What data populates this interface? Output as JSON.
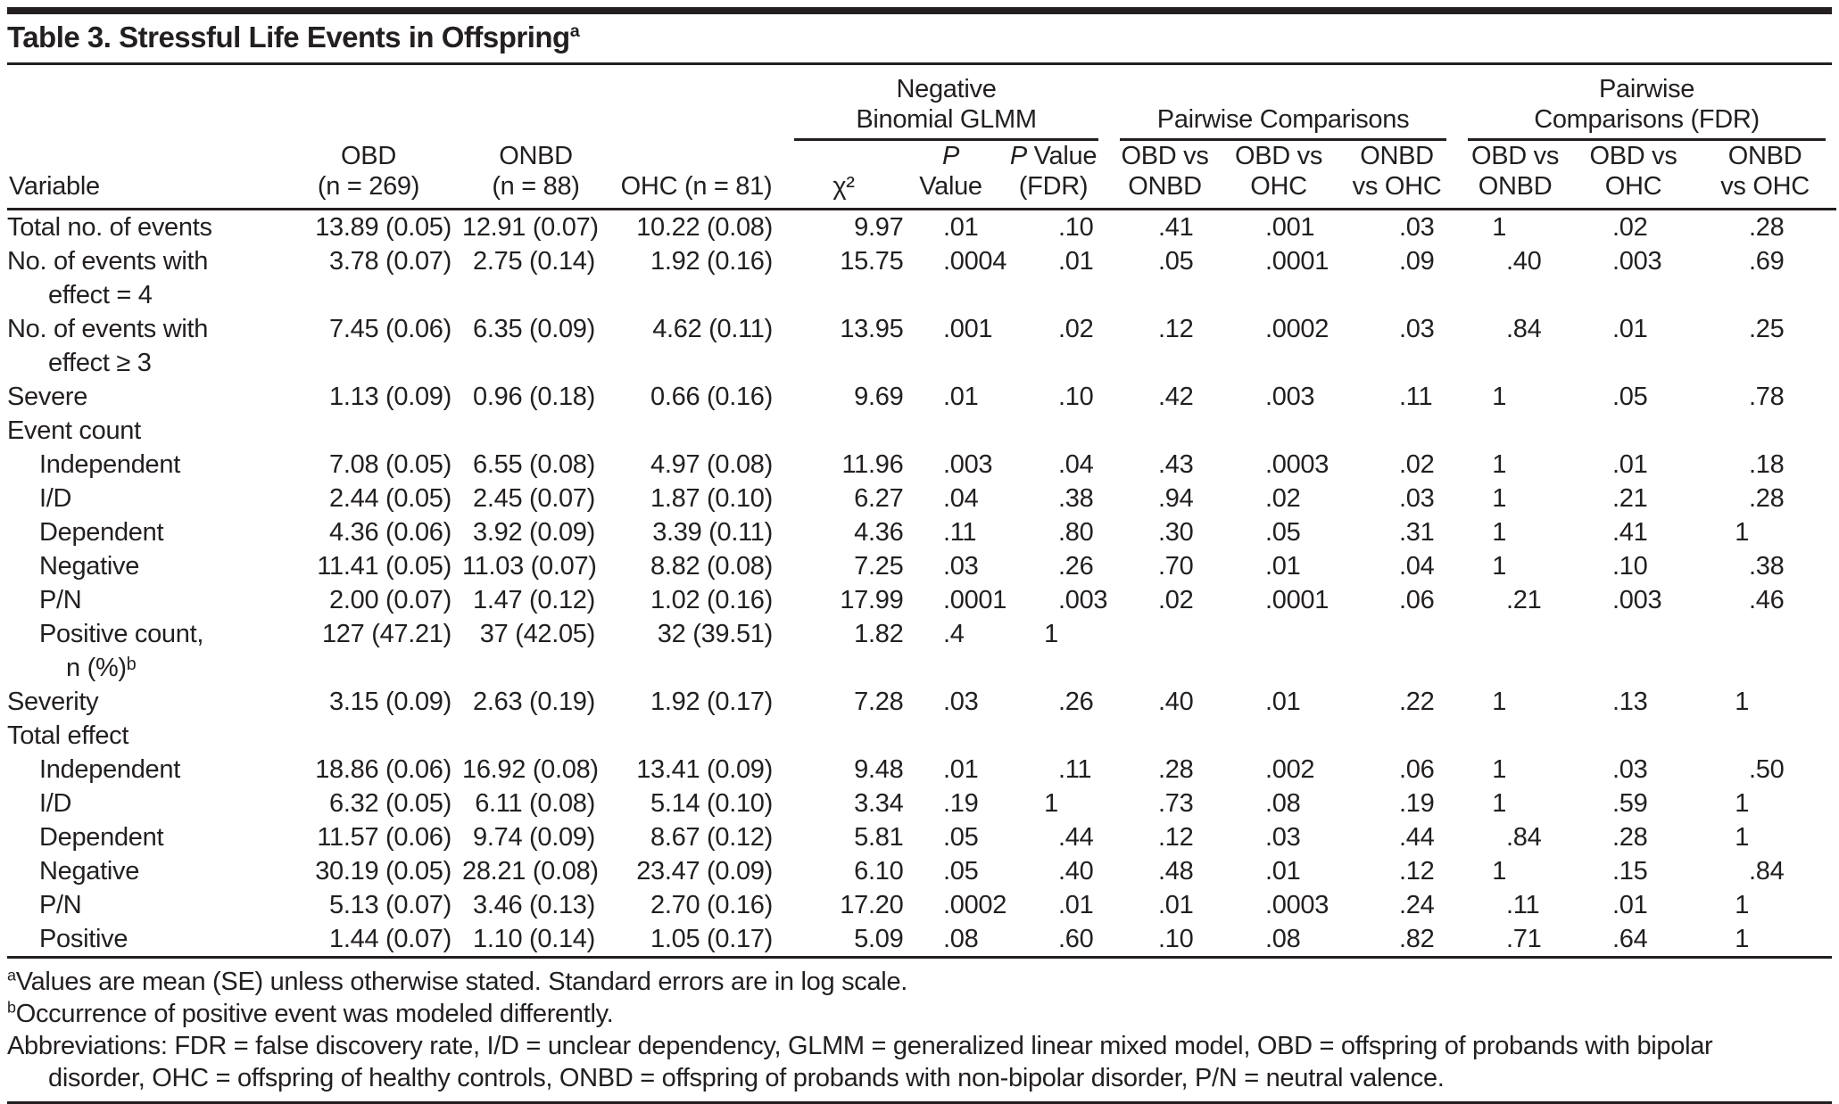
{
  "title": {
    "text": "Table 3. Stressful Life Events in Offspring",
    "superscript": "a"
  },
  "header": {
    "groups": [
      {
        "label": "Negative\nBinomial GLMM",
        "span": 3
      },
      {
        "label": "Pairwise Comparisons",
        "span": 3
      },
      {
        "label": "Pairwise\nComparisons (FDR)",
        "span": 3
      }
    ],
    "columns": [
      "Variable",
      "OBD\n(n = 269)",
      "ONBD\n(n = 88)",
      "OHC (n = 81)",
      "χ²",
      "P\nValue",
      "P Value\n(FDR)",
      "OBD vs\nONBD",
      "OBD vs\nOHC",
      "ONBD\nvs OHC",
      "OBD vs\nONBD",
      "OBD vs\nOHC",
      "ONBD\nvs OHC"
    ],
    "column_keys": [
      "obd",
      "onbd",
      "ohc",
      "chi2",
      "p_value",
      "p_value_fdr",
      "obd_vs_onbd",
      "obd_vs_ohc",
      "onbd_vs_ohc",
      "fdr_obd_vs_onbd",
      "fdr_obd_vs_ohc",
      "fdr_onbd_vs_ohc"
    ]
  },
  "rows": [
    {
      "label": "Total no. of events",
      "indent": 0,
      "values": {
        "obd": "13.89 (0.05)",
        "onbd": "12.91 (0.07)",
        "ohc": "10.22 (0.08)",
        "chi2": "9.97",
        "p_value": ".01",
        "p_value_fdr": ".10",
        "obd_vs_onbd": ".41",
        "obd_vs_ohc": ".001",
        "onbd_vs_ohc": ".03",
        "fdr_obd_vs_onbd": "1",
        "fdr_obd_vs_ohc": ".02",
        "fdr_onbd_vs_ohc": ".28"
      }
    },
    {
      "label": "No. of events with\neffect = 4",
      "indent": 0,
      "values": {
        "obd": "3.78 (0.07)",
        "onbd": "2.75 (0.14)",
        "ohc": "1.92 (0.16)",
        "chi2": "15.75",
        "p_value": ".0004",
        "p_value_fdr": ".01",
        "obd_vs_onbd": ".05",
        "obd_vs_ohc": ".0001",
        "onbd_vs_ohc": ".09",
        "fdr_obd_vs_onbd": ".40",
        "fdr_obd_vs_ohc": ".003",
        "fdr_onbd_vs_ohc": ".69"
      }
    },
    {
      "label": "No. of events with\neffect ≥ 3",
      "indent": 0,
      "values": {
        "obd": "7.45 (0.06)",
        "onbd": "6.35 (0.09)",
        "ohc": "4.62 (0.11)",
        "chi2": "13.95",
        "p_value": ".001",
        "p_value_fdr": ".02",
        "obd_vs_onbd": ".12",
        "obd_vs_ohc": ".0002",
        "onbd_vs_ohc": ".03",
        "fdr_obd_vs_onbd": ".84",
        "fdr_obd_vs_ohc": ".01",
        "fdr_onbd_vs_ohc": ".25"
      }
    },
    {
      "label": "Severe",
      "indent": 0,
      "values": {
        "obd": "1.13 (0.09)",
        "onbd": "0.96 (0.18)",
        "ohc": "0.66 (0.16)",
        "chi2": "9.69",
        "p_value": ".01",
        "p_value_fdr": ".10",
        "obd_vs_onbd": ".42",
        "obd_vs_ohc": ".003",
        "onbd_vs_ohc": ".11",
        "fdr_obd_vs_onbd": "1",
        "fdr_obd_vs_ohc": ".05",
        "fdr_onbd_vs_ohc": ".78"
      }
    },
    {
      "label": "Event count",
      "indent": 0,
      "section": true,
      "values": {}
    },
    {
      "label": "Independent",
      "indent": 1,
      "values": {
        "obd": "7.08 (0.05)",
        "onbd": "6.55 (0.08)",
        "ohc": "4.97 (0.08)",
        "chi2": "11.96",
        "p_value": ".003",
        "p_value_fdr": ".04",
        "obd_vs_onbd": ".43",
        "obd_vs_ohc": ".0003",
        "onbd_vs_ohc": ".02",
        "fdr_obd_vs_onbd": "1",
        "fdr_obd_vs_ohc": ".01",
        "fdr_onbd_vs_ohc": ".18"
      }
    },
    {
      "label": "I/D",
      "indent": 1,
      "values": {
        "obd": "2.44 (0.05)",
        "onbd": "2.45 (0.07)",
        "ohc": "1.87 (0.10)",
        "chi2": "6.27",
        "p_value": ".04",
        "p_value_fdr": ".38",
        "obd_vs_onbd": ".94",
        "obd_vs_ohc": ".02",
        "onbd_vs_ohc": ".03",
        "fdr_obd_vs_onbd": "1",
        "fdr_obd_vs_ohc": ".21",
        "fdr_onbd_vs_ohc": ".28"
      }
    },
    {
      "label": "Dependent",
      "indent": 1,
      "values": {
        "obd": "4.36 (0.06)",
        "onbd": "3.92 (0.09)",
        "ohc": "3.39 (0.11)",
        "chi2": "4.36",
        "p_value": ".11",
        "p_value_fdr": ".80",
        "obd_vs_onbd": ".30",
        "obd_vs_ohc": ".05",
        "onbd_vs_ohc": ".31",
        "fdr_obd_vs_onbd": "1",
        "fdr_obd_vs_ohc": ".41",
        "fdr_onbd_vs_ohc": "1"
      }
    },
    {
      "label": "Negative",
      "indent": 1,
      "values": {
        "obd": "11.41 (0.05)",
        "onbd": "11.03 (0.07)",
        "ohc": "8.82 (0.08)",
        "chi2": "7.25",
        "p_value": ".03",
        "p_value_fdr": ".26",
        "obd_vs_onbd": ".70",
        "obd_vs_ohc": ".01",
        "onbd_vs_ohc": ".04",
        "fdr_obd_vs_onbd": "1",
        "fdr_obd_vs_ohc": ".10",
        "fdr_onbd_vs_ohc": ".38"
      }
    },
    {
      "label": "P/N",
      "indent": 1,
      "values": {
        "obd": "2.00 (0.07)",
        "onbd": "1.47 (0.12)",
        "ohc": "1.02 (0.16)",
        "chi2": "17.99",
        "p_value": ".0001",
        "p_value_fdr": ".003",
        "obd_vs_onbd": ".02",
        "obd_vs_ohc": ".0001",
        "onbd_vs_ohc": ".06",
        "fdr_obd_vs_onbd": ".21",
        "fdr_obd_vs_ohc": ".003",
        "fdr_onbd_vs_ohc": ".46"
      }
    },
    {
      "label": "Positive count,\nn (%)ᵇ",
      "indent": 1,
      "values": {
        "obd": "127 (47.21)",
        "onbd": "37 (42.05)",
        "ohc": "32 (39.51)",
        "chi2": "1.82",
        "p_value": ".4",
        "p_value_fdr": "1",
        "obd_vs_onbd": "",
        "obd_vs_ohc": "",
        "onbd_vs_ohc": "",
        "fdr_obd_vs_onbd": "",
        "fdr_obd_vs_ohc": "",
        "fdr_onbd_vs_ohc": ""
      }
    },
    {
      "label": "Severity",
      "indent": 0,
      "values": {
        "obd": "3.15 (0.09)",
        "onbd": "2.63 (0.19)",
        "ohc": "1.92 (0.17)",
        "chi2": "7.28",
        "p_value": ".03",
        "p_value_fdr": ".26",
        "obd_vs_onbd": ".40",
        "obd_vs_ohc": ".01",
        "onbd_vs_ohc": ".22",
        "fdr_obd_vs_onbd": "1",
        "fdr_obd_vs_ohc": ".13",
        "fdr_onbd_vs_ohc": "1"
      }
    },
    {
      "label": "Total effect",
      "indent": 0,
      "section": true,
      "values": {}
    },
    {
      "label": "Independent",
      "indent": 1,
      "values": {
        "obd": "18.86 (0.06)",
        "onbd": "16.92 (0.08)",
        "ohc": "13.41 (0.09)",
        "chi2": "9.48",
        "p_value": ".01",
        "p_value_fdr": ".11",
        "obd_vs_onbd": ".28",
        "obd_vs_ohc": ".002",
        "onbd_vs_ohc": ".06",
        "fdr_obd_vs_onbd": "1",
        "fdr_obd_vs_ohc": ".03",
        "fdr_onbd_vs_ohc": ".50"
      }
    },
    {
      "label": "I/D",
      "indent": 1,
      "values": {
        "obd": "6.32 (0.05)",
        "onbd": "6.11 (0.08)",
        "ohc": "5.14 (0.10)",
        "chi2": "3.34",
        "p_value": ".19",
        "p_value_fdr": "1",
        "obd_vs_onbd": ".73",
        "obd_vs_ohc": ".08",
        "onbd_vs_ohc": ".19",
        "fdr_obd_vs_onbd": "1",
        "fdr_obd_vs_ohc": ".59",
        "fdr_onbd_vs_ohc": "1"
      }
    },
    {
      "label": "Dependent",
      "indent": 1,
      "values": {
        "obd": "11.57 (0.06)",
        "onbd": "9.74 (0.09)",
        "ohc": "8.67 (0.12)",
        "chi2": "5.81",
        "p_value": ".05",
        "p_value_fdr": ".44",
        "obd_vs_onbd": ".12",
        "obd_vs_ohc": ".03",
        "onbd_vs_ohc": ".44",
        "fdr_obd_vs_onbd": ".84",
        "fdr_obd_vs_ohc": ".28",
        "fdr_onbd_vs_ohc": "1"
      }
    },
    {
      "label": "Negative",
      "indent": 1,
      "values": {
        "obd": "30.19 (0.05)",
        "onbd": "28.21 (0.08)",
        "ohc": "23.47 (0.09)",
        "chi2": "6.10",
        "p_value": ".05",
        "p_value_fdr": ".40",
        "obd_vs_onbd": ".48",
        "obd_vs_ohc": ".01",
        "onbd_vs_ohc": ".12",
        "fdr_obd_vs_onbd": "1",
        "fdr_obd_vs_ohc": ".15",
        "fdr_onbd_vs_ohc": ".84"
      }
    },
    {
      "label": "P/N",
      "indent": 1,
      "values": {
        "obd": "5.13 (0.07)",
        "onbd": "3.46 (0.13)",
        "ohc": "2.70 (0.16)",
        "chi2": "17.20",
        "p_value": ".0002",
        "p_value_fdr": ".01",
        "obd_vs_onbd": ".01",
        "obd_vs_ohc": ".0003",
        "onbd_vs_ohc": ".24",
        "fdr_obd_vs_onbd": ".11",
        "fdr_obd_vs_ohc": ".01",
        "fdr_onbd_vs_ohc": "1"
      }
    },
    {
      "label": "Positive",
      "indent": 1,
      "values": {
        "obd": "1.44 (0.07)",
        "onbd": "1.10 (0.14)",
        "ohc": "1.05 (0.17)",
        "chi2": "5.09",
        "p_value": ".08",
        "p_value_fdr": ".60",
        "obd_vs_onbd": ".10",
        "obd_vs_ohc": ".08",
        "onbd_vs_ohc": ".82",
        "fdr_obd_vs_onbd": ".71",
        "fdr_obd_vs_ohc": ".64",
        "fdr_onbd_vs_ohc": "1"
      }
    }
  ],
  "footnotes": [
    {
      "marker": "a",
      "text": "Values are mean (SE) unless otherwise stated. Standard errors are in log scale."
    },
    {
      "marker": "b",
      "text": "Occurrence of positive event was modeled differently."
    },
    {
      "marker": "",
      "text": "Abbreviations: FDR = false discovery rate, I/D = unclear dependency, GLMM = generalized linear mixed model, OBD = offspring of probands with bipolar\ndisorder, OHC = offspring of healthy controls, ONBD = offspring of probands with non-bipolar disorder, P/N = neutral valence."
    }
  ],
  "colors": {
    "text": "#231f20",
    "rule": "#231f20",
    "background": "#ffffff"
  }
}
